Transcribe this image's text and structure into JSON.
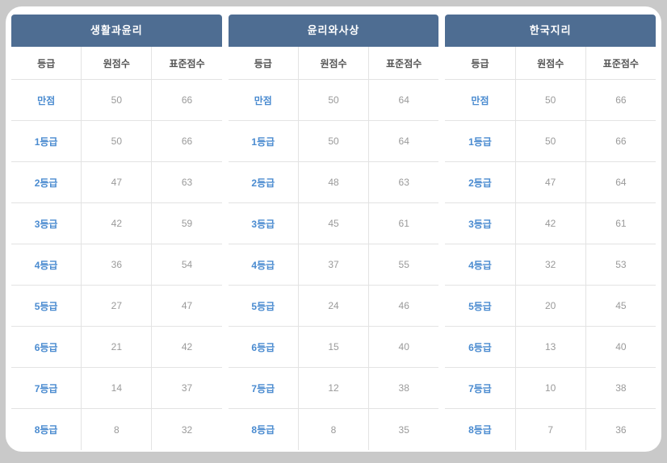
{
  "colors": {
    "frame_bg": "#c9c9c9",
    "panel_bg": "#ffffff",
    "header_bg": "#4e6d92",
    "grade_text": "#4a8bd0",
    "number_text": "#9a9a9a"
  },
  "columns": [
    "등급",
    "원점수",
    "표준점수"
  ],
  "tables": [
    {
      "title": "생활과윤리",
      "rows": [
        {
          "grade": "만점",
          "raw": "50",
          "std": "66"
        },
        {
          "grade": "1등급",
          "raw": "50",
          "std": "66"
        },
        {
          "grade": "2등급",
          "raw": "47",
          "std": "63"
        },
        {
          "grade": "3등급",
          "raw": "42",
          "std": "59"
        },
        {
          "grade": "4등급",
          "raw": "36",
          "std": "54"
        },
        {
          "grade": "5등급",
          "raw": "27",
          "std": "47"
        },
        {
          "grade": "6등급",
          "raw": "21",
          "std": "42"
        },
        {
          "grade": "7등급",
          "raw": "14",
          "std": "37"
        },
        {
          "grade": "8등급",
          "raw": "8",
          "std": "32"
        }
      ]
    },
    {
      "title": "윤리와사상",
      "rows": [
        {
          "grade": "만점",
          "raw": "50",
          "std": "64"
        },
        {
          "grade": "1등급",
          "raw": "50",
          "std": "64"
        },
        {
          "grade": "2등급",
          "raw": "48",
          "std": "63"
        },
        {
          "grade": "3등급",
          "raw": "45",
          "std": "61"
        },
        {
          "grade": "4등급",
          "raw": "37",
          "std": "55"
        },
        {
          "grade": "5등급",
          "raw": "24",
          "std": "46"
        },
        {
          "grade": "6등급",
          "raw": "15",
          "std": "40"
        },
        {
          "grade": "7등급",
          "raw": "12",
          "std": "38"
        },
        {
          "grade": "8등급",
          "raw": "8",
          "std": "35"
        }
      ]
    },
    {
      "title": "한국지리",
      "rows": [
        {
          "grade": "만점",
          "raw": "50",
          "std": "66"
        },
        {
          "grade": "1등급",
          "raw": "50",
          "std": "66"
        },
        {
          "grade": "2등급",
          "raw": "47",
          "std": "64"
        },
        {
          "grade": "3등급",
          "raw": "42",
          "std": "61"
        },
        {
          "grade": "4등급",
          "raw": "32",
          "std": "53"
        },
        {
          "grade": "5등급",
          "raw": "20",
          "std": "45"
        },
        {
          "grade": "6등급",
          "raw": "13",
          "std": "40"
        },
        {
          "grade": "7등급",
          "raw": "10",
          "std": "38"
        },
        {
          "grade": "8등급",
          "raw": "7",
          "std": "36"
        }
      ]
    }
  ]
}
